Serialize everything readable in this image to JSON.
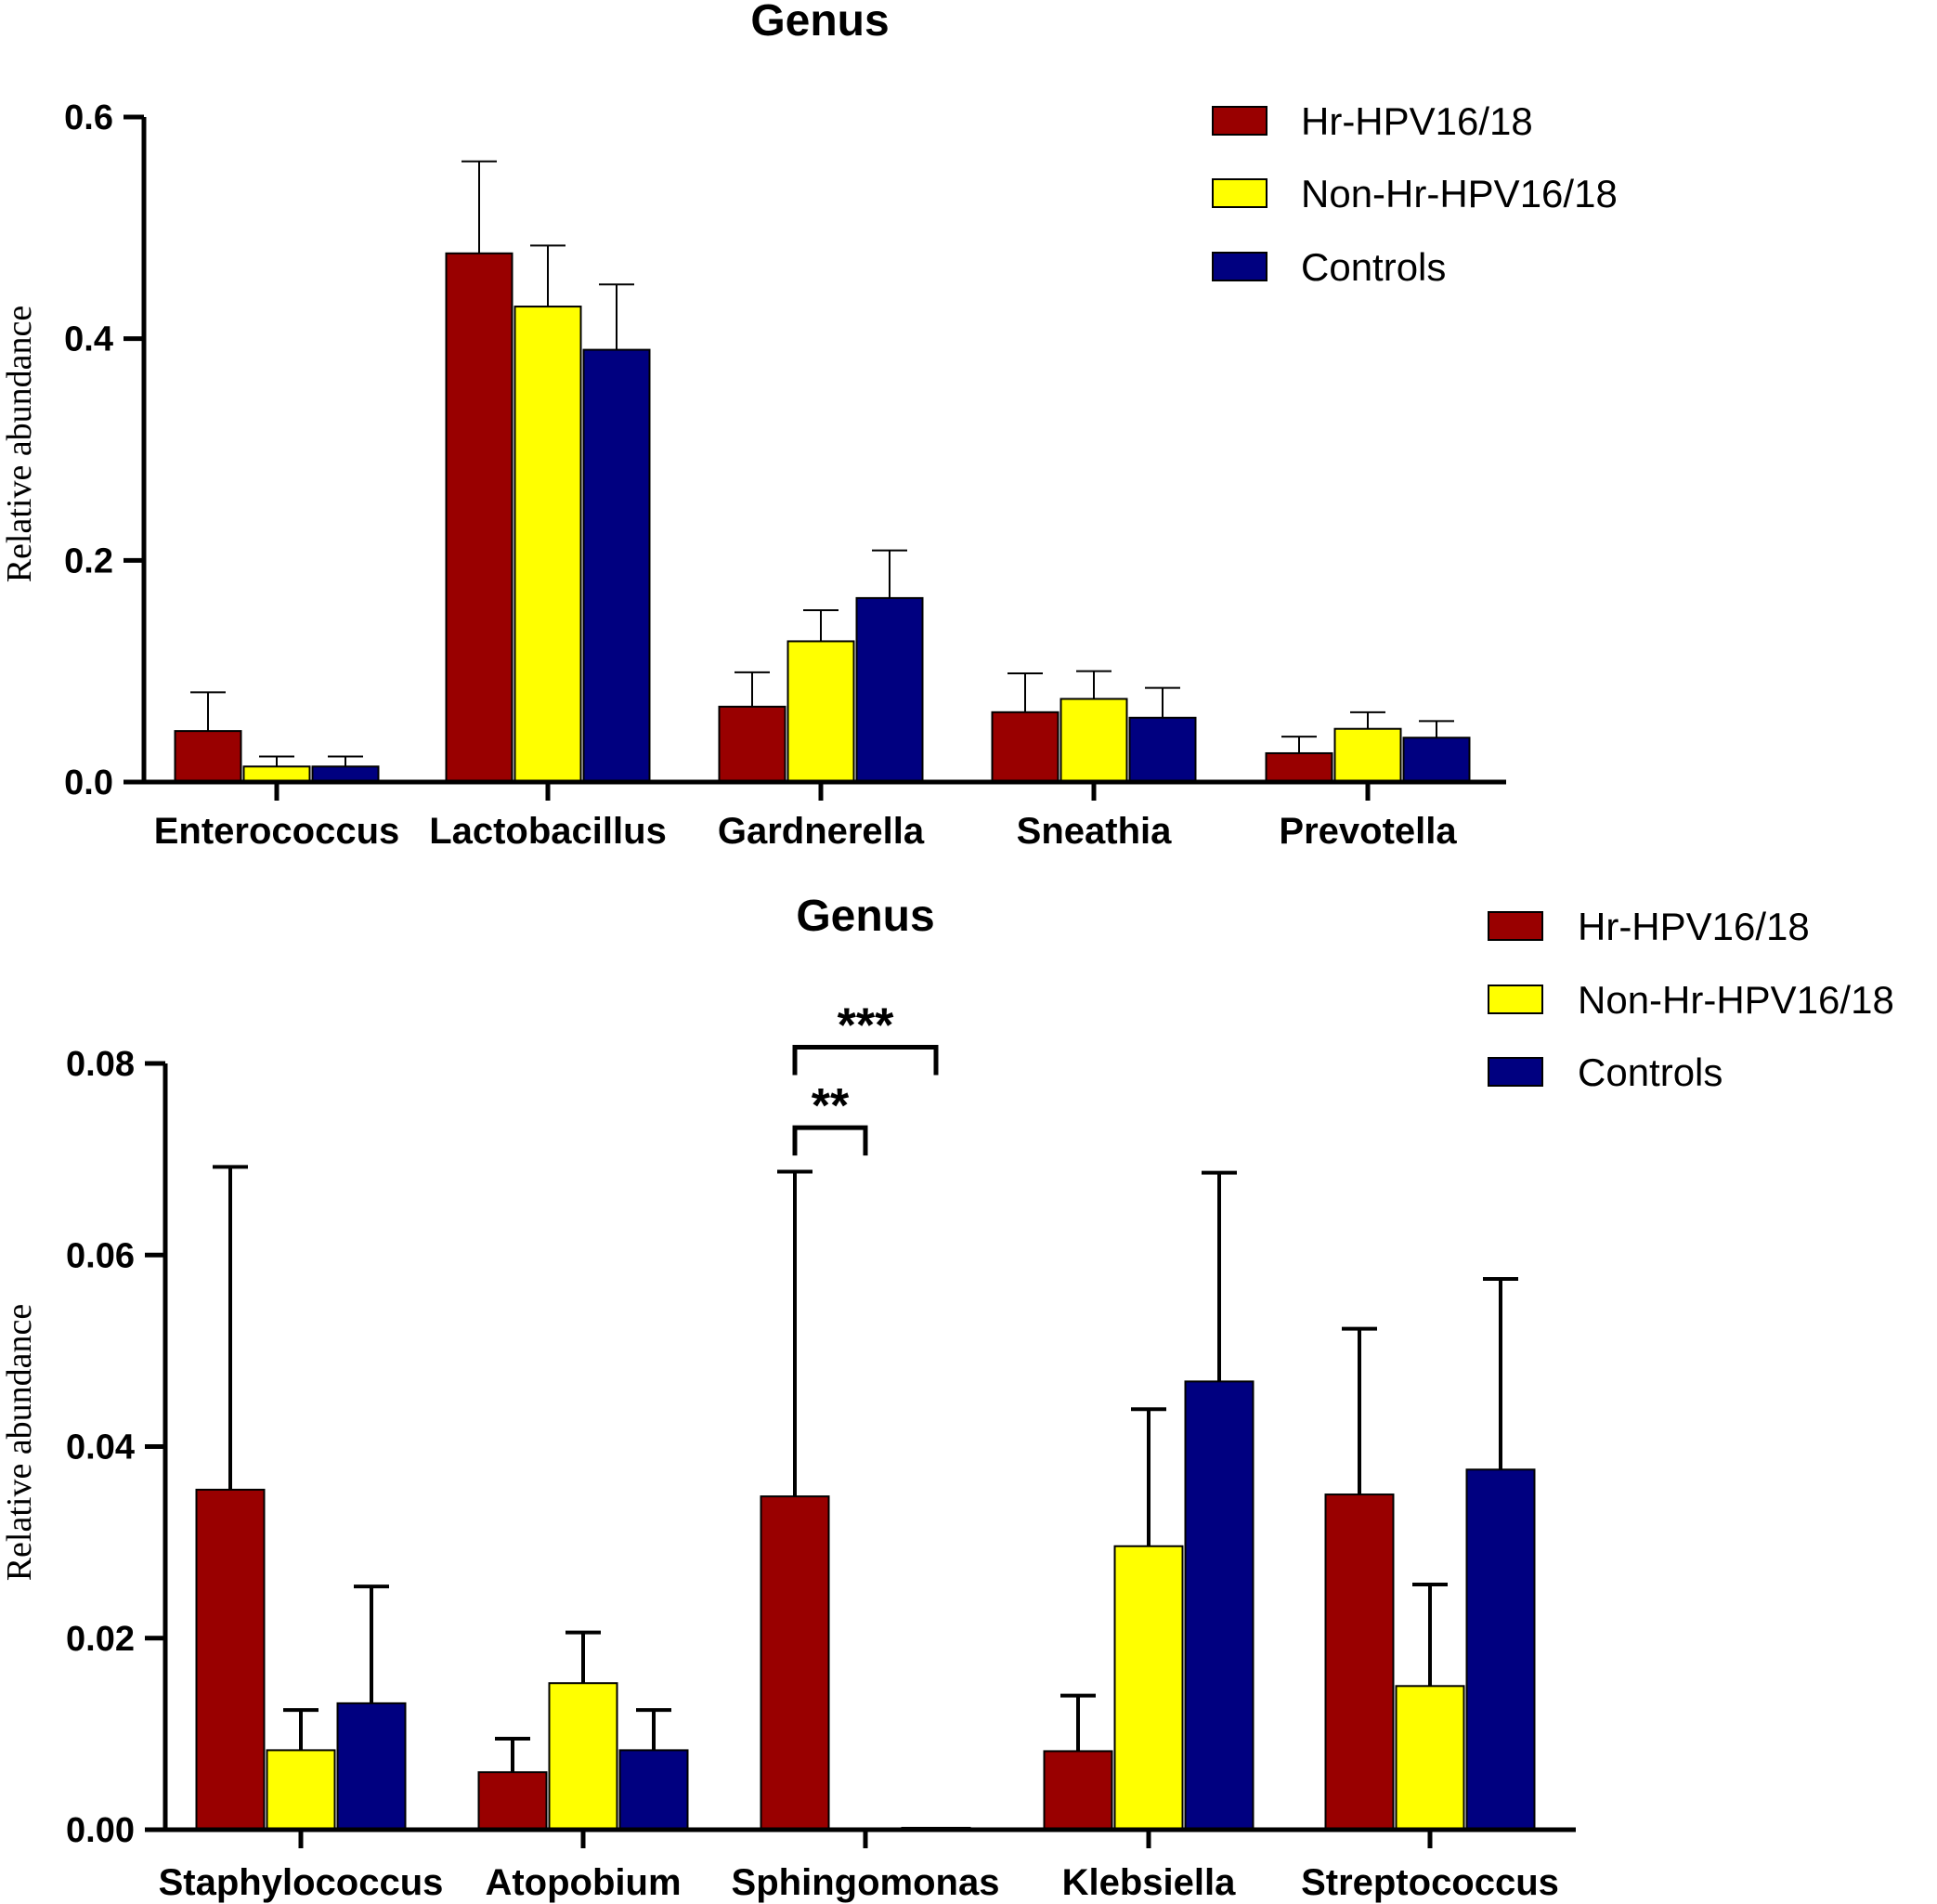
{
  "chart_data": [
    {
      "type": "bar",
      "title": "Genus",
      "xlabel": "",
      "ylabel": "Relative abundance",
      "ylim": [
        0,
        0.6
      ],
      "yticks": [
        "0.0",
        "0.2",
        "0.4",
        "0.6"
      ],
      "ytick_values": [
        0,
        0.2,
        0.4,
        0.6
      ],
      "categories": [
        "Enterococcus",
        "Lactobacillus",
        "Gardnerella",
        "Sneathia",
        "Prevotella"
      ],
      "legend_position": "top-right",
      "series": [
        {
          "name": "Hr-HPV16/18",
          "color": "#990000",
          "values": [
            0.046,
            0.477,
            0.068,
            0.063,
            0.026
          ],
          "errors": [
            0.035,
            0.083,
            0.031,
            0.035,
            0.015
          ]
        },
        {
          "name": "Non-Hr-HPV16/18",
          "color": "#ffff00",
          "values": [
            0.014,
            0.429,
            0.127,
            0.075,
            0.048
          ],
          "errors": [
            0.009,
            0.055,
            0.028,
            0.025,
            0.015
          ]
        },
        {
          "name": "Controls",
          "color": "#000080",
          "values": [
            0.014,
            0.39,
            0.166,
            0.058,
            0.04
          ],
          "errors": [
            0.009,
            0.059,
            0.043,
            0.027,
            0.015
          ]
        }
      ],
      "annotations": []
    },
    {
      "type": "bar",
      "title": "Genus",
      "xlabel": "",
      "ylabel": "Relative abundance",
      "ylim": [
        0,
        0.08
      ],
      "yticks": [
        "0.00",
        "0.02",
        "0.04",
        "0.06",
        "0.08"
      ],
      "ytick_values": [
        0,
        0.02,
        0.04,
        0.06,
        0.08
      ],
      "categories": [
        "Staphylococcus",
        "Atopobium",
        "Sphingomonas",
        "Klebsiella",
        "Streptococcus"
      ],
      "legend_position": "top-right",
      "series": [
        {
          "name": "Hr-HPV16/18",
          "color": "#990000",
          "values": [
            0.0355,
            0.006,
            0.0348,
            0.0082,
            0.035
          ],
          "errors": [
            0.0337,
            0.0035,
            0.0339,
            0.0058,
            0.0173
          ]
        },
        {
          "name": "Non-Hr-HPV16/18",
          "color": "#ffff00",
          "values": [
            0.0083,
            0.0153,
            0.0,
            0.0296,
            0.015
          ],
          "errors": [
            0.0042,
            0.0053,
            0.0,
            0.0143,
            0.0106
          ]
        },
        {
          "name": "Controls",
          "color": "#000080",
          "values": [
            0.0132,
            0.0083,
            0.0002,
            0.0468,
            0.0376
          ],
          "errors": [
            0.0122,
            0.0042,
            0.0,
            0.0218,
            0.0199
          ]
        }
      ],
      "annotations": [
        {
          "label": "***",
          "category": "Sphingomonas",
          "from_series": 0,
          "to_series": 2,
          "y": 0.0817
        },
        {
          "label": "**",
          "category": "Sphingomonas",
          "from_series": 0,
          "to_series": 1,
          "y": 0.0733
        }
      ]
    }
  ]
}
